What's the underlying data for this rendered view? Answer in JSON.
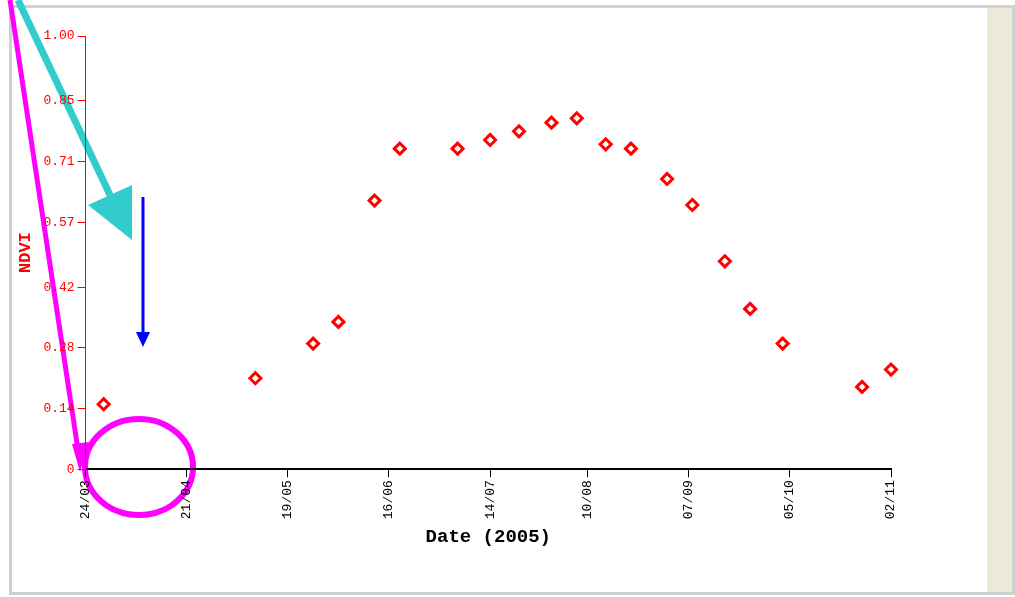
{
  "chart_data": {
    "type": "scatter",
    "xlabel": "Date (2005)",
    "ylabel": "NDVI",
    "x": [
      "2005-03-29",
      "2005-05-10",
      "2005-05-26",
      "2005-06-02",
      "2005-06-12",
      "2005-06-19",
      "2005-07-05",
      "2005-07-14",
      "2005-07-22",
      "2005-07-31",
      "2005-08-07",
      "2005-08-15",
      "2005-08-22",
      "2005-09-01",
      "2005-09-08",
      "2005-09-17",
      "2005-09-24",
      "2005-10-03",
      "2005-10-25",
      "2005-11-02"
    ],
    "series": [
      {
        "color": "#ff0000",
        "values": [
          0.15,
          0.21,
          0.29,
          0.34,
          0.62,
          0.74,
          0.74,
          0.76,
          0.78,
          0.8,
          0.81,
          0.75,
          0.74,
          0.67,
          0.61,
          0.48,
          0.37,
          0.29,
          0.19,
          0.23
        ]
      }
    ],
    "xlim": [
      "2005-03-24",
      "2005-11-02"
    ],
    "xticks": [
      {
        "value": "2005-03-24",
        "label": "24/03"
      },
      {
        "value": "2005-04-21",
        "label": "21/04"
      },
      {
        "value": "2005-05-19",
        "label": "19/05"
      },
      {
        "value": "2005-06-16",
        "label": "16/06"
      },
      {
        "value": "2005-07-14",
        "label": "14/07"
      },
      {
        "value": "2005-08-10",
        "label": "10/08"
      },
      {
        "value": "2005-09-07",
        "label": "07/09"
      },
      {
        "value": "2005-10-05",
        "label": "05/10"
      },
      {
        "value": "2005-11-02",
        "label": "02/11"
      }
    ],
    "ylim": [
      0,
      1
    ],
    "yticks": [
      0,
      0.14,
      0.28,
      0.42,
      0.57,
      0.71,
      0.85,
      {
        "value": 1,
        "label": "1.00"
      }
    ],
    "grid": false,
    "legend": false,
    "marker": "diamond"
  }
}
